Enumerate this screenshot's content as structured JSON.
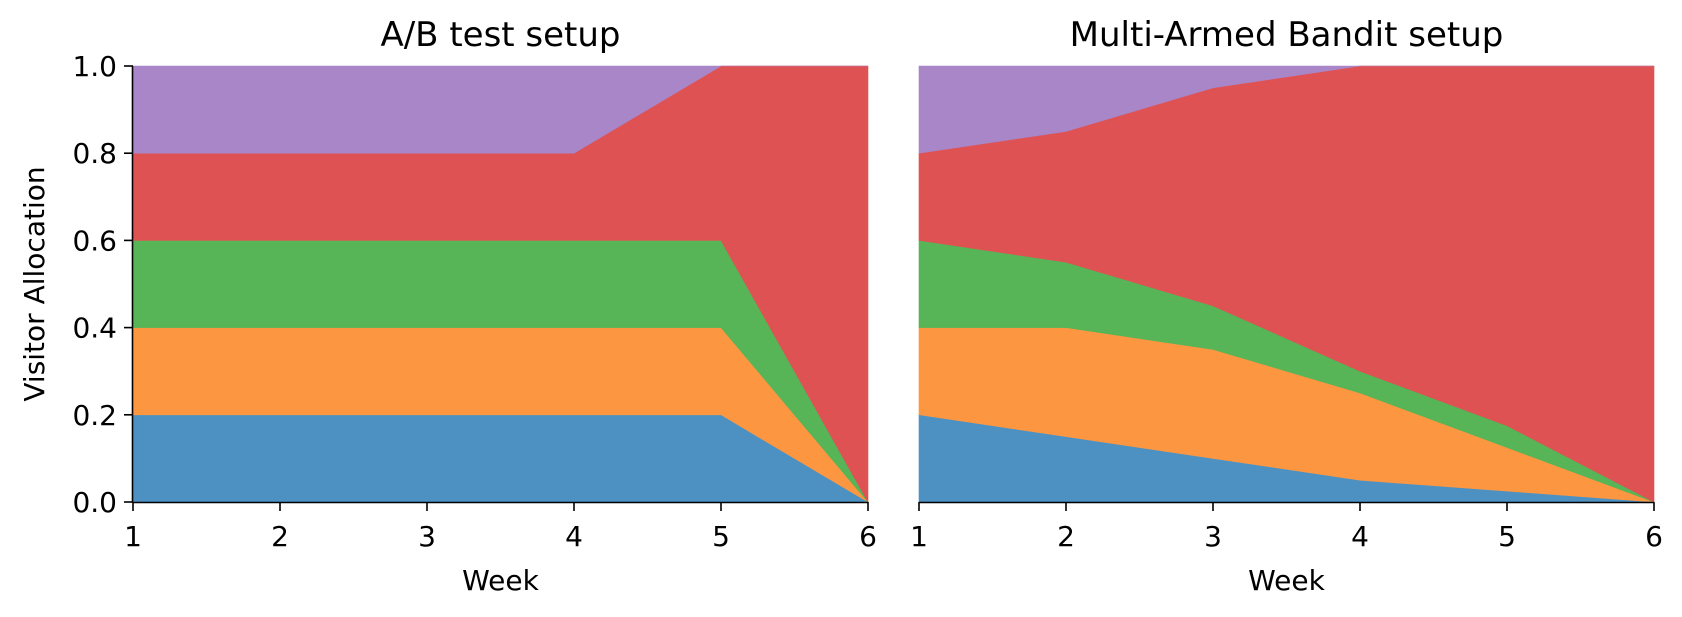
{
  "chart_data": [
    {
      "type": "area",
      "stacked": true,
      "title": "A/B test setup",
      "xlabel": "Week",
      "ylabel": "Visitor Allocation",
      "x": [
        1,
        2,
        3,
        4,
        5,
        6
      ],
      "xlim": [
        1,
        6
      ],
      "ylim": [
        0,
        1
      ],
      "xticks": [
        "1",
        "2",
        "3",
        "4",
        "5",
        "6"
      ],
      "yticks": [
        "0.0",
        "0.2",
        "0.4",
        "0.6",
        "0.8",
        "1.0"
      ],
      "grid": false,
      "series": [
        {
          "color": "#4c91c2",
          "values": [
            0.2,
            0.2,
            0.2,
            0.2,
            0.2,
            0.0
          ]
        },
        {
          "color": "#fd9640",
          "values": [
            0.2,
            0.2,
            0.2,
            0.2,
            0.2,
            0.0
          ]
        },
        {
          "color": "#57b457",
          "values": [
            0.2,
            0.2,
            0.2,
            0.2,
            0.2,
            0.0
          ]
        },
        {
          "color": "#df5253",
          "values": [
            0.2,
            0.2,
            0.2,
            0.2,
            0.4,
            1.0
          ]
        },
        {
          "color": "#a886c8",
          "values": [
            0.2,
            0.2,
            0.2,
            0.2,
            0.0,
            0.0
          ]
        }
      ]
    },
    {
      "type": "area",
      "stacked": true,
      "title": "Multi-Armed Bandit setup",
      "xlabel": "Week",
      "ylabel": "",
      "x": [
        1,
        2,
        3,
        4,
        5,
        6
      ],
      "xlim": [
        1,
        6
      ],
      "ylim": [
        0,
        1
      ],
      "xticks": [
        "1",
        "2",
        "3",
        "4",
        "5",
        "6"
      ],
      "yticks": [],
      "grid": false,
      "series": [
        {
          "color": "#4c91c2",
          "values": [
            0.2,
            0.15,
            0.1,
            0.05,
            0.025,
            0.0
          ]
        },
        {
          "color": "#fd9640",
          "values": [
            0.2,
            0.25,
            0.25,
            0.2,
            0.1,
            0.0
          ]
        },
        {
          "color": "#57b457",
          "values": [
            0.2,
            0.15,
            0.1,
            0.05,
            0.05,
            0.0
          ]
        },
        {
          "color": "#df5253",
          "values": [
            0.2,
            0.3,
            0.5,
            0.7,
            0.825,
            1.0
          ]
        },
        {
          "color": "#a886c8",
          "values": [
            0.2,
            0.15,
            0.05,
            0.0,
            0.0,
            0.0
          ]
        }
      ]
    }
  ]
}
